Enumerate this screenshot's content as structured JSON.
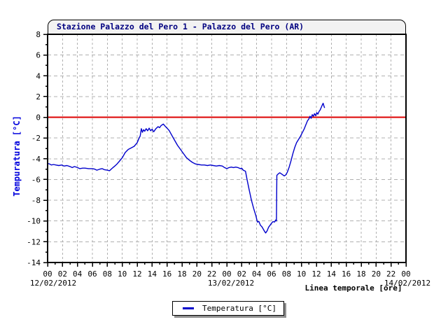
{
  "chart_data": {
    "type": "line",
    "title": "Stazione Palazzo del Pero 1 - Palazzo del Pero (AR)",
    "xlabel": "Linea temporale [ore]",
    "ylabel": "Tempuratura [°C]",
    "x_axis": {
      "unit": "hours",
      "range_hours": [
        0,
        48
      ],
      "major_tick_step_hours": 2,
      "minor_tick_step_hours": 1,
      "tick_labels": [
        "00",
        "02",
        "04",
        "06",
        "08",
        "10",
        "12",
        "14",
        "16",
        "18",
        "20",
        "22",
        "00",
        "02",
        "04",
        "06",
        "08",
        "10",
        "12",
        "14",
        "16",
        "18",
        "20",
        "22",
        "00"
      ],
      "date_labels": [
        {
          "hour": 0,
          "label": "12/02/2012"
        },
        {
          "hour": 24,
          "label": "13/02/2012"
        },
        {
          "hour": 48,
          "label": "14/02/2012"
        }
      ]
    },
    "y_axis": {
      "range": [
        -14,
        8
      ],
      "major_tick_step": 2,
      "minor_tick_step": 1,
      "tick_labels": [
        "8",
        "6",
        "4",
        "2",
        "0",
        "-2",
        "-4",
        "-6",
        "-8",
        "-10",
        "-12",
        "-14"
      ]
    },
    "grid": {
      "visible": true,
      "color": "#b0b0b0"
    },
    "zero_line": {
      "value": 0,
      "color": "#dd0000"
    },
    "legend": {
      "position": "bottom-center",
      "entries": [
        {
          "label": "Temperatura [°C]",
          "color": "#0000cc"
        }
      ]
    },
    "series": [
      {
        "name": "Temperatura [°C]",
        "color": "#0000cc",
        "points": [
          [
            0,
            -4.45
          ],
          [
            0.25,
            -4.5
          ],
          [
            0.5,
            -4.6
          ],
          [
            0.8,
            -4.55
          ],
          [
            1.1,
            -4.6
          ],
          [
            1.5,
            -4.65
          ],
          [
            1.9,
            -4.6
          ],
          [
            2.2,
            -4.7
          ],
          [
            2.6,
            -4.65
          ],
          [
            3,
            -4.75
          ],
          [
            3.3,
            -4.85
          ],
          [
            3.6,
            -4.75
          ],
          [
            4,
            -4.85
          ],
          [
            4.3,
            -4.95
          ],
          [
            4.7,
            -4.9
          ],
          [
            5,
            -4.9
          ],
          [
            5.5,
            -4.95
          ],
          [
            6,
            -4.95
          ],
          [
            6.3,
            -5
          ],
          [
            6.6,
            -5.1
          ],
          [
            7,
            -5
          ],
          [
            7.3,
            -4.95
          ],
          [
            7.6,
            -5.05
          ],
          [
            8,
            -5.1
          ],
          [
            8.3,
            -5.15
          ],
          [
            8.6,
            -4.95
          ],
          [
            9,
            -4.7
          ],
          [
            9.3,
            -4.5
          ],
          [
            9.6,
            -4.25
          ],
          [
            10,
            -3.9
          ],
          [
            10.4,
            -3.4
          ],
          [
            10.8,
            -3.1
          ],
          [
            11.2,
            -2.95
          ],
          [
            11.6,
            -2.8
          ],
          [
            12,
            -2.45
          ],
          [
            12.2,
            -2.1
          ],
          [
            12.4,
            -1.8
          ],
          [
            12.55,
            -1.1
          ],
          [
            12.7,
            -1.45
          ],
          [
            12.85,
            -1.2
          ],
          [
            13,
            -1.35
          ],
          [
            13.2,
            -1.1
          ],
          [
            13.4,
            -1.3
          ],
          [
            13.6,
            -1.05
          ],
          [
            13.8,
            -1.3
          ],
          [
            14,
            -1.15
          ],
          [
            14.2,
            -1.4
          ],
          [
            14.5,
            -1.1
          ],
          [
            14.8,
            -0.9
          ],
          [
            15,
            -1
          ],
          [
            15.2,
            -0.8
          ],
          [
            15.5,
            -0.65
          ],
          [
            15.8,
            -0.9
          ],
          [
            16,
            -1.05
          ],
          [
            16.3,
            -1.3
          ],
          [
            16.6,
            -1.7
          ],
          [
            17,
            -2.2
          ],
          [
            17.4,
            -2.7
          ],
          [
            17.8,
            -3.1
          ],
          [
            18.2,
            -3.5
          ],
          [
            18.6,
            -3.9
          ],
          [
            19,
            -4.15
          ],
          [
            19.4,
            -4.35
          ],
          [
            19.8,
            -4.5
          ],
          [
            20.2,
            -4.55
          ],
          [
            20.6,
            -4.6
          ],
          [
            21,
            -4.6
          ],
          [
            21.4,
            -4.65
          ],
          [
            21.8,
            -4.6
          ],
          [
            22.2,
            -4.65
          ],
          [
            22.6,
            -4.7
          ],
          [
            23,
            -4.65
          ],
          [
            23.4,
            -4.7
          ],
          [
            23.7,
            -4.85
          ],
          [
            24,
            -4.95
          ],
          [
            24.3,
            -4.85
          ],
          [
            24.6,
            -4.8
          ],
          [
            24.9,
            -4.85
          ],
          [
            25.2,
            -4.8
          ],
          [
            25.5,
            -4.85
          ],
          [
            25.8,
            -4.95
          ],
          [
            26,
            -4.9
          ],
          [
            26.2,
            -5.1
          ],
          [
            26.5,
            -5.2
          ],
          [
            26.7,
            -5.95
          ],
          [
            27,
            -7
          ],
          [
            27.3,
            -8
          ],
          [
            27.6,
            -8.8
          ],
          [
            27.9,
            -9.5
          ],
          [
            28.1,
            -10.1
          ],
          [
            28.3,
            -10.05
          ],
          [
            28.5,
            -10.4
          ],
          [
            28.7,
            -10.55
          ],
          [
            28.9,
            -10.8
          ],
          [
            29.05,
            -11
          ],
          [
            29.2,
            -11.15
          ],
          [
            29.4,
            -10.95
          ],
          [
            29.6,
            -10.6
          ],
          [
            29.8,
            -10.4
          ],
          [
            30,
            -10.2
          ],
          [
            30.2,
            -10.05
          ],
          [
            30.4,
            -10.1
          ],
          [
            30.55,
            -9.9
          ],
          [
            30.65,
            -10
          ],
          [
            30.7,
            -5.6
          ],
          [
            30.9,
            -5.45
          ],
          [
            31.1,
            -5.35
          ],
          [
            31.3,
            -5.45
          ],
          [
            31.5,
            -5.55
          ],
          [
            31.7,
            -5.65
          ],
          [
            31.9,
            -5.55
          ],
          [
            32.1,
            -5.3
          ],
          [
            32.35,
            -4.8
          ],
          [
            32.6,
            -4.2
          ],
          [
            32.85,
            -3.5
          ],
          [
            33.1,
            -2.9
          ],
          [
            33.35,
            -2.45
          ],
          [
            33.6,
            -2.15
          ],
          [
            33.85,
            -1.85
          ],
          [
            34.1,
            -1.5
          ],
          [
            34.35,
            -1.15
          ],
          [
            34.6,
            -0.7
          ],
          [
            34.8,
            -0.35
          ],
          [
            35,
            -0.15
          ],
          [
            35.15,
            0.1
          ],
          [
            35.3,
            -0.1
          ],
          [
            35.45,
            0.25
          ],
          [
            35.6,
            0.1
          ],
          [
            35.75,
            0.35
          ],
          [
            35.9,
            0.15
          ],
          [
            36.05,
            0.45
          ],
          [
            36.2,
            0.3
          ],
          [
            36.35,
            0.55
          ],
          [
            36.5,
            0.7
          ],
          [
            36.65,
            0.95
          ],
          [
            36.8,
            1.2
          ],
          [
            36.9,
            1.35
          ],
          [
            37,
            1.1
          ],
          [
            37.1,
            0.9
          ]
        ]
      }
    ]
  },
  "colors": {
    "title_text": "#000080",
    "ylabel_text": "#0000dd",
    "axis_text": "#000000",
    "plot_border": "#000000",
    "title_box_fill": "#f2f2f2",
    "background": "#ffffff",
    "legend_shadow": "#909090"
  }
}
